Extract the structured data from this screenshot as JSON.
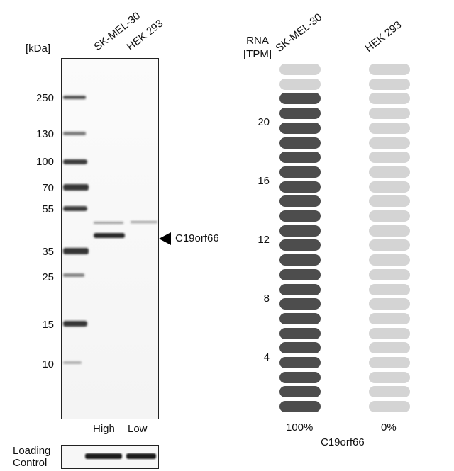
{
  "blot": {
    "unit_label": "[kDa]",
    "lanes": [
      "SK-MEL-30",
      "HEK 293"
    ],
    "ladder": [
      "250",
      "130",
      "100",
      "70",
      "55",
      "35",
      "25",
      "15",
      "10"
    ],
    "target_label": "C19orf66",
    "conditions": [
      "High",
      "Low"
    ],
    "loading_label_line1": "Loading",
    "loading_label_line2": "Control"
  },
  "rna": {
    "header_line1": "RNA",
    "header_line2": "[TPM]",
    "columns": [
      "SK-MEL-30",
      "HEK 293"
    ],
    "ticks": [
      "20",
      "16",
      "12",
      "8",
      "4"
    ],
    "percent": [
      "100%",
      "0%"
    ],
    "gene": "C19orf66"
  },
  "chart_data": {
    "type": "bar",
    "categories": [
      "SK-MEL-30",
      "HEK 293"
    ],
    "values": [
      100,
      0
    ],
    "yticks": [
      4,
      8,
      12,
      16,
      20
    ],
    "ylabel": "RNA [TPM]",
    "xlabel": "C19orf66",
    "total_units": 24,
    "filled_units": [
      22,
      0
    ],
    "colors": {
      "filled": "#4d4d4d",
      "empty": "#d4d4d4"
    }
  }
}
